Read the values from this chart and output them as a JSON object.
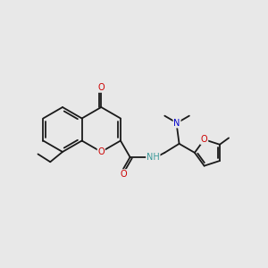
{
  "background_color": "#e8e8e8",
  "bond_color": "#1a1a1a",
  "oxygen_color": "#cc0000",
  "nitrogen_color": "#0000cc",
  "nh_color": "#3a9999",
  "figsize": [
    3.0,
    3.0
  ],
  "dpi": 100,
  "xlim": [
    0,
    12
  ],
  "ylim": [
    0,
    12
  ]
}
